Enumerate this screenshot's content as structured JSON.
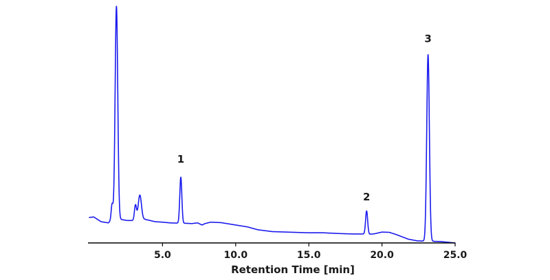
{
  "chart_data": {
    "type": "line",
    "title": "",
    "xlabel": "Retention Time [min]",
    "ylabel": "",
    "xlim": [
      0,
      25.0
    ],
    "ylim": [
      0,
      100
    ],
    "x_ticks": [
      5.0,
      10.0,
      15.0,
      20.0,
      25.0
    ],
    "x_tick_labels": [
      "5.0",
      "10.0",
      "15.0",
      "20.0",
      "25.0"
    ],
    "grid": false,
    "legend": "none",
    "line_color": "#1a1aee",
    "series": [
      {
        "baseline": [
          [
            0.0,
            10.8
          ],
          [
            0.3,
            11.0
          ],
          [
            0.8,
            9.0
          ],
          [
            1.3,
            8.5
          ],
          [
            1.6,
            10.5
          ],
          [
            2.1,
            10.0
          ],
          [
            2.6,
            9.5
          ],
          [
            3.0,
            9.5
          ],
          [
            3.8,
            10.0
          ],
          [
            4.5,
            9.0
          ],
          [
            5.0,
            8.8
          ],
          [
            5.5,
            8.5
          ],
          [
            6.0,
            8.4
          ],
          [
            6.7,
            8.3
          ],
          [
            7.0,
            8.2
          ],
          [
            7.4,
            8.5
          ],
          [
            7.7,
            7.6
          ],
          [
            7.9,
            8.2
          ],
          [
            8.3,
            8.8
          ],
          [
            9.0,
            8.6
          ],
          [
            10.0,
            7.6
          ],
          [
            10.8,
            6.8
          ],
          [
            11.5,
            5.6
          ],
          [
            12.5,
            4.8
          ],
          [
            14.0,
            4.5
          ],
          [
            15.0,
            4.3
          ],
          [
            16.0,
            4.3
          ],
          [
            17.0,
            4.0
          ],
          [
            18.0,
            3.8
          ],
          [
            18.7,
            3.8
          ],
          [
            19.2,
            3.7
          ],
          [
            19.5,
            3.9
          ],
          [
            20.0,
            4.6
          ],
          [
            20.5,
            4.5
          ],
          [
            21.0,
            3.5
          ],
          [
            21.8,
            1.6
          ],
          [
            22.4,
            0.9
          ],
          [
            22.8,
            0.8
          ],
          [
            23.5,
            0.7
          ],
          [
            24.0,
            0.6
          ],
          [
            25.0,
            0.0
          ]
        ],
        "peaks": [
          {
            "center": 1.55,
            "height": 6.2,
            "width": 0.06
          },
          {
            "center": 1.85,
            "height": 90.0,
            "width": 0.09
          },
          {
            "center": 3.15,
            "height": 6.4,
            "width": 0.07
          },
          {
            "center": 3.45,
            "height": 10.5,
            "width": 0.11
          },
          {
            "center": 6.25,
            "height": 19.5,
            "width": 0.07
          },
          {
            "center": 18.95,
            "height": 9.8,
            "width": 0.07
          },
          {
            "center": 23.15,
            "height": 79.0,
            "width": 0.09
          }
        ]
      }
    ],
    "annotations": [
      {
        "text": "1",
        "x": 6.25,
        "y": 34.0
      },
      {
        "text": "2",
        "x": 18.95,
        "y": 18.0
      },
      {
        "text": "3",
        "x": 23.15,
        "y": 85.0
      }
    ]
  }
}
